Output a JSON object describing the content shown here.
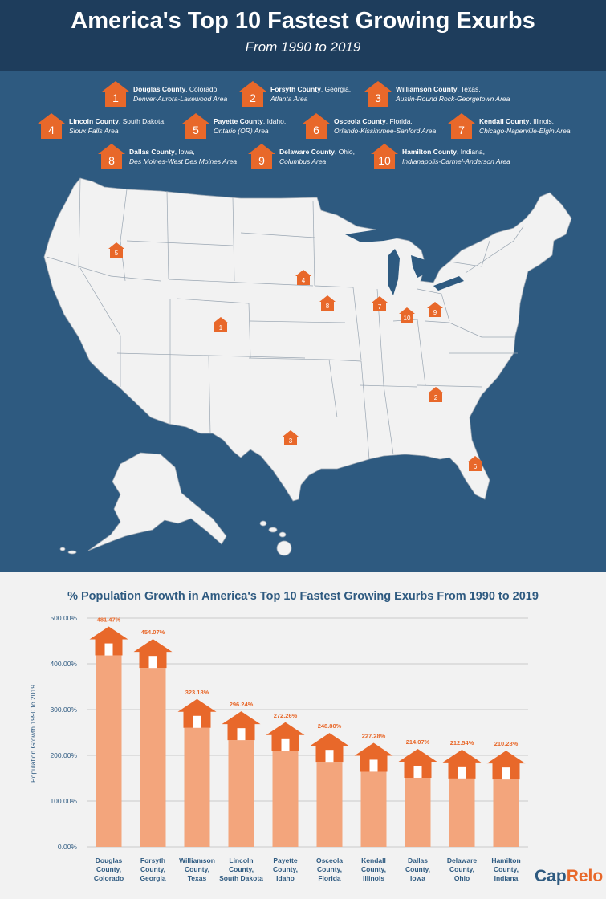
{
  "header": {
    "title": "America's Top 10 Fastest Growing Exurbs",
    "subtitle": "From 1990 to 2019"
  },
  "colors": {
    "navy": "#1e3d5c",
    "map_bg": "#2e5a80",
    "land": "#f2f2f2",
    "orange": "#e8682a",
    "bar": "#f3a57c"
  },
  "legend": [
    {
      "rank": "1",
      "county": "Douglas County",
      "state": ", Colorado,",
      "area": "Denver-Aurora-Lakewood Area"
    },
    {
      "rank": "2",
      "county": "Forsyth County",
      "state": ", Georgia,",
      "area": "Atlanta Area"
    },
    {
      "rank": "3",
      "county": "Williamson County",
      "state": ", Texas,",
      "area": "Austin-Round Rock-Georgetown Area"
    },
    {
      "rank": "4",
      "county": "Lincoln County",
      "state": ", South Dakota,",
      "area": "Sioux Falls Area"
    },
    {
      "rank": "5",
      "county": "Payette County",
      "state": ", Idaho,",
      "area": "Ontario (OR) Area"
    },
    {
      "rank": "6",
      "county": "Osceola County",
      "state": ", Florida,",
      "area": "Orlando-Kissimmee-Sanford Area"
    },
    {
      "rank": "7",
      "county": "Kendall County",
      "state": ", Illinois,",
      "area": "Chicago-Naperville-Elgin Area"
    },
    {
      "rank": "8",
      "county": "Dallas County",
      "state": ", Iowa,",
      "area": "Des Moines-West Des Moines Area"
    },
    {
      "rank": "9",
      "county": "Delaware County",
      "state": ", Ohio,",
      "area": "Columbus Area"
    },
    {
      "rank": "10",
      "county": "Hamilton County",
      "state": ", Indiana,",
      "area": "Indianapolis-Carmel-Anderson Area"
    }
  ],
  "map_markers": [
    "1",
    "2",
    "3",
    "4",
    "5",
    "6",
    "7",
    "8",
    "9",
    "10"
  ],
  "chart_data": {
    "type": "bar",
    "title": "% Population Growth in America's Top 10 Fastest Growing Exurbs From 1990 to 2019",
    "ylabel": "Population Growth 1990 to 2019",
    "xlabel": "",
    "ylim": [
      0,
      500
    ],
    "yticks": [
      "0.00%",
      "100.00%",
      "200.00%",
      "300.00%",
      "400.00%",
      "500.00%"
    ],
    "categories": [
      [
        "Douglas",
        "County,",
        "Colorado"
      ],
      [
        "Forsyth",
        "County,",
        "Georgia"
      ],
      [
        "Williamson",
        "County,",
        "Texas"
      ],
      [
        "Lincoln",
        "County,",
        "South Dakota"
      ],
      [
        "Payette",
        "County,",
        "Idaho"
      ],
      [
        "Osceola",
        "County,",
        "Florida"
      ],
      [
        "Kendall",
        "County,",
        "Illinois"
      ],
      [
        "Dallas",
        "County,",
        "Iowa"
      ],
      [
        "Delaware",
        "County,",
        "Ohio"
      ],
      [
        "Hamilton",
        "County,",
        "Indiana"
      ]
    ],
    "values": [
      481.47,
      454.07,
      323.18,
      296.24,
      272.26,
      248.8,
      227.28,
      214.07,
      212.54,
      210.28
    ],
    "value_labels": [
      "481.47%",
      "454.07%",
      "323.18%",
      "296.24%",
      "272.26%",
      "248.80%",
      "227.28%",
      "214.07%",
      "212.54%",
      "210.28%"
    ],
    "grid": true,
    "legend": "none"
  },
  "logo": {
    "part1": "Cap",
    "part2": "Relo"
  }
}
